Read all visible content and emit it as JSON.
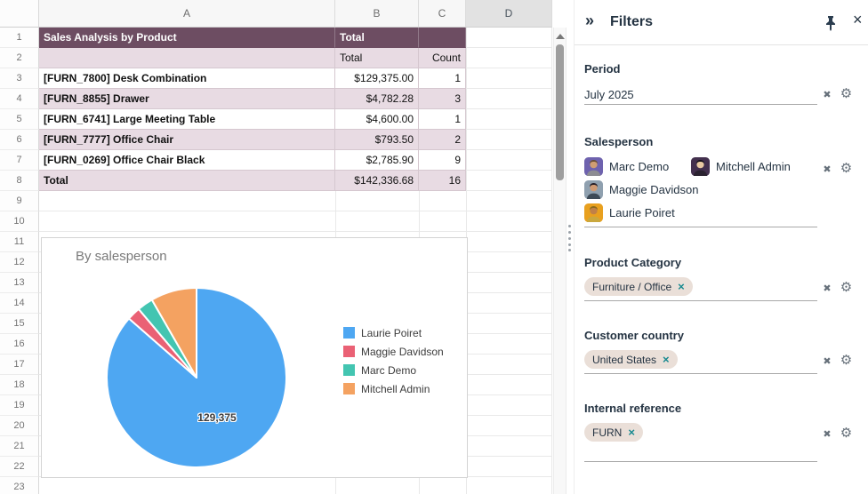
{
  "sheet": {
    "column_headers": [
      "A",
      "B",
      "C",
      "D"
    ],
    "highlighted_column": "D",
    "row_numbers": [
      "1",
      "2",
      "3",
      "4",
      "5",
      "6",
      "7",
      "8",
      "9",
      "10",
      "11",
      "12",
      "13",
      "14",
      "15",
      "16",
      "17",
      "18",
      "19",
      "20",
      "21",
      "22",
      "23"
    ]
  },
  "pivot": {
    "title": "Sales Analysis by Product",
    "col_group_header": "Total",
    "value_headers": [
      "Total",
      "Count"
    ],
    "rows": [
      {
        "name": "[FURN_7800] Desk Combination",
        "total": "$129,375.00",
        "count": "1"
      },
      {
        "name": "[FURN_8855] Drawer",
        "total": "$4,782.28",
        "count": "3"
      },
      {
        "name": "[FURN_6741] Large Meeting Table",
        "total": "$4,600.00",
        "count": "1"
      },
      {
        "name": "[FURN_7777] Office Chair",
        "total": "$793.50",
        "count": "2"
      },
      {
        "name": "[FURN_0269] Office Chair Black",
        "total": "$2,785.90",
        "count": "9"
      }
    ],
    "total_row": {
      "name": "Total",
      "total": "$142,336.68",
      "count": "16"
    },
    "colors": {
      "header_bg": "#6d4d62",
      "alt_row_bg": "#e8dbe3"
    }
  },
  "chart_data": {
    "type": "pie",
    "title": "By salesperson",
    "categories": [
      "Laurie Poiret",
      "Maggie Davidson",
      "Marc Demo",
      "Mitchell Admin"
    ],
    "values": [
      129375,
      3600,
      4300,
      12400
    ],
    "colors": [
      "#4EA7F2",
      "#EA6175",
      "#43C5B1",
      "#F4A261"
    ],
    "data_label": {
      "slice": "Laurie Poiret",
      "text": "129,375"
    },
    "legend_position": "right"
  },
  "filters_panel": {
    "title": "Filters",
    "icons": {
      "collapse": "»",
      "close": "×",
      "clear": "✖",
      "gear": "⚙",
      "tag_remove": "×"
    },
    "period": {
      "label": "Period",
      "value": "July 2025"
    },
    "salesperson": {
      "label": "Salesperson",
      "items": [
        {
          "name": "Marc Demo",
          "avatar": {
            "bg": "#6e62ae",
            "skin": "#cf9d72",
            "hair": "#6b4f35",
            "shirt": "#8d8d93"
          }
        },
        {
          "name": "Mitchell Admin",
          "avatar": {
            "bg": "#43304e",
            "skin": "#e8c9a2",
            "hair": "#16121a",
            "shirt": "#2a2230"
          }
        },
        {
          "name": "Maggie Davidson",
          "avatar": {
            "bg": "#8fa0af",
            "skin": "#cf9a73",
            "hair": "#241d27",
            "shirt": "#3d4a57"
          }
        },
        {
          "name": "Laurie Poiret",
          "avatar": {
            "bg": "#e8a01f",
            "skin": "#c08048",
            "hair": "#8a6a1c",
            "shirt": "#caa83e"
          }
        }
      ]
    },
    "product_category": {
      "label": "Product Category",
      "tags": [
        "Furniture / Office"
      ]
    },
    "customer_country": {
      "label": "Customer country",
      "tags": [
        "United States"
      ]
    },
    "internal_reference": {
      "label": "Internal reference",
      "tags": [
        "FURN"
      ]
    }
  }
}
